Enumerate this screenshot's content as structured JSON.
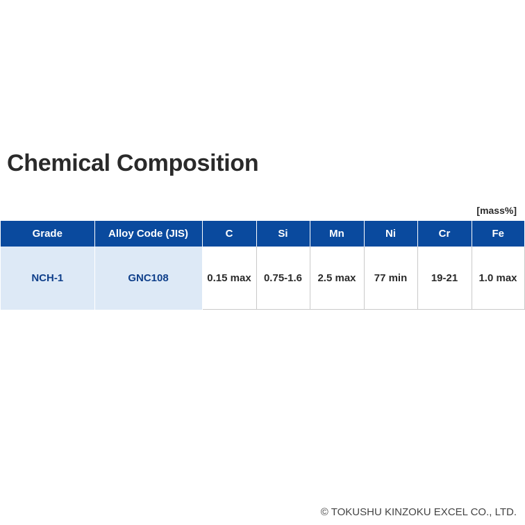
{
  "page": {
    "title": "Chemical Composition",
    "unit": "[mass%]",
    "footer": "© TOKUSHU KINZOKU EXCEL CO., LTD."
  },
  "table": {
    "headers": {
      "grade": "Grade",
      "alloy_code": "Alloy Code (JIS)",
      "c": "C",
      "si": "Si",
      "mn": "Mn",
      "ni": "Ni",
      "cr": "Cr",
      "fe": "Fe"
    },
    "rows": [
      {
        "grade": "NCH-1",
        "alloy_code": "GNC108",
        "c": "0.15 max",
        "si": "0.75-1.6",
        "mn": "2.5 max",
        "ni": "77 min",
        "cr": "19-21",
        "fe": "1.0 max"
      }
    ]
  },
  "colors": {
    "header_background": "#0a4a9e",
    "id_cell_background": "#dde9f6",
    "id_text": "#0f3f8a"
  }
}
